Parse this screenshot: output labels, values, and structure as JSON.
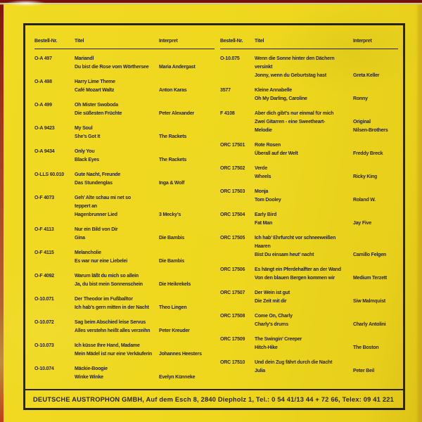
{
  "colors": {
    "background_yellow": "#EED71D",
    "ink_black": "#29251A",
    "frame_black": "#26231A",
    "sleeve_edge_red": "#7D150E"
  },
  "footer": {
    "text": "DEUTSCHE AUSTROPHON GMBH, Auf dem Esch 8, 2840 Diepholz 1, Tel.: 0 54 41/13 44 + 72 66, Telex: 09 41 221"
  },
  "tables": [
    {
      "headers": {
        "nr": "Bestell-Nr.",
        "titel": "Titel",
        "interpret": "Interpret"
      },
      "rows": [
        {
          "nr": "O-A 497",
          "titles": [
            "Mariandl",
            "Du bist die Rose vom Wörthersee"
          ],
          "interpret": [
            "Maria Andergast"
          ]
        },
        {
          "nr": "O-A 498",
          "titles": [
            "Harry Lime Theme",
            "Café Mozart Waltz"
          ],
          "interpret": [
            "Anton Karas"
          ]
        },
        {
          "nr": "O-A 499",
          "titles": [
            "Oh Mister Swoboda",
            "Die süßesten Früchte"
          ],
          "interpret": [
            "Peter Alexander"
          ]
        },
        {
          "nr": "O-A 9423",
          "titles": [
            "My Soul",
            "She’s Got It"
          ],
          "interpret": [
            "The Rackets"
          ]
        },
        {
          "nr": "O-A 9434",
          "titles": [
            "Only You",
            "Black Eyes"
          ],
          "interpret": [
            "The Rackets"
          ]
        },
        {
          "nr": "O-LLS 60.010",
          "titles": [
            "Gute Nacht, Freunde",
            "Das Stundenglas"
          ],
          "interpret": [
            "Inga & Wolf"
          ]
        },
        {
          "nr": "O-F 4073",
          "titles": [
            "Geh’ Alte schau mi net so",
            "teppert an",
            "Hagenbrunner Lied"
          ],
          "interpret": [
            "3 Mecky’s"
          ]
        },
        {
          "nr": "O-F 4113",
          "titles": [
            "Nur ein Bild von Dir",
            "Gina"
          ],
          "interpret": [
            "Die Bambis"
          ]
        },
        {
          "nr": "O-F 4115",
          "titles": [
            "Melancholie",
            "Es war nur eine Liebelei"
          ],
          "interpret": [
            "Die Bambis"
          ]
        },
        {
          "nr": "O-F 4092",
          "titles": [
            "Warum läßt du mich so allein",
            "Ja, du bist mein Sonnenschein"
          ],
          "interpret": [
            "Die Heikrekels"
          ]
        },
        {
          "nr": "O-10.071",
          "titles": [
            "Der Theodor im Fußballtor",
            "Ich hab’s gern mitten in der Nacht"
          ],
          "interpret": [
            "Theo Lingen"
          ]
        },
        {
          "nr": "O-10.072",
          "titles": [
            "Sag beim Abschied leise Servus",
            "Alles verstehn heißt alles verzeihn"
          ],
          "interpret": [
            "Peter Kreuder"
          ]
        },
        {
          "nr": "O-10.073",
          "titles": [
            "Ich küsse Ihre Hand, Madame",
            "Mein Mädel ist nur eine Verkäuferin"
          ],
          "interpret": [
            "Johannes Heesters"
          ]
        },
        {
          "nr": "O-10.074",
          "titles": [
            "Mäckie-Boogie",
            "Winke Winke"
          ],
          "interpret": [
            "Evelyn Künneke"
          ]
        }
      ]
    },
    {
      "headers": {
        "nr": "Bestell-Nr.",
        "titel": "Titel",
        "interpret": "Interpret"
      },
      "rows": [
        {
          "nr": "O-10.075",
          "titles": [
            "Wenn die Sonne hinter den Dächern",
            "versinkt",
            "Jonny, wenn du Geburtstag hast"
          ],
          "interpret": [
            "Greta Keller"
          ]
        },
        {
          "nr": "3577",
          "titles": [
            "Kleine Annabelle",
            "Oh My Darling, Caroline"
          ],
          "interpret": [
            "Ronny"
          ]
        },
        {
          "nr": "F 4108",
          "titles": [
            "Aber dich gibt’s nur einmal für mich",
            "Zwei Gitarren - eine Sweetheart-",
            "Melodie"
          ],
          "interpret": [
            "Original",
            "Nilsen-Brothers"
          ]
        },
        {
          "nr": "ORC 17501",
          "titles": [
            "Rote Rosen",
            "Überall auf der Welt"
          ],
          "interpret": [
            "Freddy Breck"
          ]
        },
        {
          "nr": "ORC 17502",
          "titles": [
            "Verde",
            "Wheels"
          ],
          "interpret": [
            "Ricky King"
          ]
        },
        {
          "nr": "ORC 17503",
          "titles": [
            "Monja",
            "Tom Dooley"
          ],
          "interpret": [
            "Roland W."
          ]
        },
        {
          "nr": "ORC 17504",
          "titles": [
            "Early Bird",
            "Fat Man"
          ],
          "interpret": [
            "Jay Five"
          ]
        },
        {
          "nr": "ORC 17505",
          "titles": [
            "Ich hab’ Ehrfurcht vor schneeweißen",
            "Haaren",
            "Bist Du einsam heut’ nacht"
          ],
          "interpret": [
            "Camillo Felgen"
          ]
        },
        {
          "nr": "ORC 17506",
          "titles": [
            "Es hängt ein Pferdehalfter an der Wand",
            "Von den blauen Bergen kommen wir"
          ],
          "interpret": [
            "Medium Terzett"
          ]
        },
        {
          "nr": "ORC 17507",
          "titles": [
            "Der Wein ist gut",
            "Die Zeit mit dir"
          ],
          "interpret": [
            "Siw Malmquist"
          ]
        },
        {
          "nr": "ORC 17508",
          "titles": [
            "Come On, Charly",
            "Charly’s drums"
          ],
          "interpret": [
            "Charly Antolini"
          ]
        },
        {
          "nr": "ORC 17509",
          "titles": [
            "The Swingin’ Creeper",
            "Hitch-Hike"
          ],
          "interpret": [
            "The Boston"
          ]
        },
        {
          "nr": "ORC 17510",
          "titles": [
            "Und dein Zug fährt durch die Nacht",
            "Julia"
          ],
          "interpret": [
            "Peter Beil"
          ]
        }
      ]
    }
  ]
}
